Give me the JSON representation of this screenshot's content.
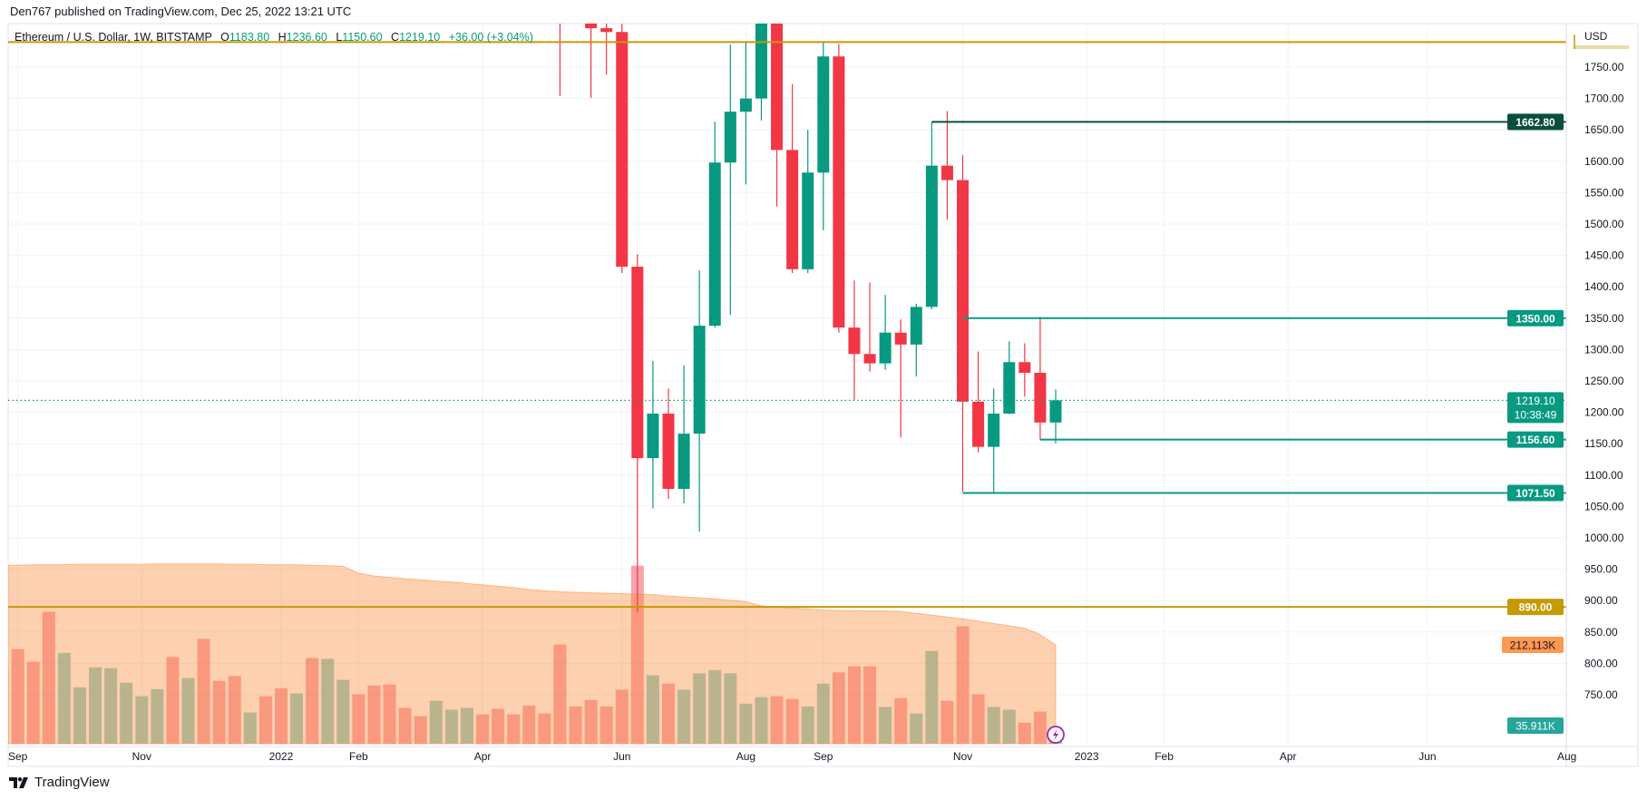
{
  "publisher_line": "Den767 published on TradingView.com, Dec 25, 2022 13:21 UTC",
  "legend": {
    "symbol": "Ethereum / U.S. Dollar, 1W, BITSTAMP",
    "o_key": "O",
    "o_val": "1183.80",
    "h_key": "H",
    "h_val": "1236.60",
    "l_key": "L",
    "l_val": "1150.60",
    "c_key": "C",
    "c_val": "1219.10",
    "change": "+36.00 (+3.04%)"
  },
  "footer": {
    "brand": "TradingView",
    "logo_icon": "tradingview-logo-icon"
  },
  "colors": {
    "up": "#089981",
    "down": "#f23645",
    "grid": "#f0f3fa",
    "level_gold": "#c49a06",
    "level_dark_green": "#0b4d3b",
    "level_green": "#089981",
    "volume_ma": "#fa8a3a",
    "volume_ma_label": "#ff9850",
    "volume_label": "#26a69a"
  },
  "chart_data": {
    "type": "candlestick",
    "title": "Ethereum / U.S. Dollar, 1W, BITSTAMP",
    "currency_label": "USD",
    "interval": "1W",
    "ylim": [
      665,
      1819
    ],
    "grid": true,
    "y_ticks": [
      "1750.00",
      "1700.00",
      "1650.00",
      "1600.00",
      "1550.00",
      "1500.00",
      "1450.00",
      "1400.00",
      "1350.00",
      "1300.00",
      "1250.00",
      "1200.00",
      "1150.00",
      "1100.00",
      "1050.00",
      "1000.00",
      "950.00",
      "900.00",
      "850.00",
      "800.00",
      "750.00"
    ],
    "time_ticks": [
      {
        "label": "Sep",
        "date": "2021-09-06"
      },
      {
        "label": "Nov",
        "date": "2021-11-01"
      },
      {
        "label": "2022",
        "date": "2022-01-03"
      },
      {
        "label": "Feb",
        "date": "2022-02-07"
      },
      {
        "label": "Apr",
        "date": "2022-04-04"
      },
      {
        "label": "Jun",
        "date": "2022-06-06"
      },
      {
        "label": "Aug",
        "date": "2022-08-01"
      },
      {
        "label": "Sep",
        "date": "2022-09-05"
      },
      {
        "label": "Nov",
        "date": "2022-11-07"
      },
      {
        "label": "2023",
        "date": "2023-01-02"
      },
      {
        "label": "Feb",
        "date": "2023-02-06"
      },
      {
        "label": "Apr",
        "date": "2023-04-03"
      },
      {
        "label": "Jun",
        "date": "2023-06-05"
      },
      {
        "label": "Aug",
        "date": "2023-08-07"
      }
    ],
    "candles": [
      {
        "date": "2022-05-09",
        "o": 2518,
        "h": 2525,
        "l": 1704,
        "c": 2056
      },
      {
        "date": "2022-05-23",
        "o": 1976,
        "h": 2017,
        "l": 1701,
        "c": 1812
      },
      {
        "date": "2022-05-30",
        "o": 1812,
        "h": 1960,
        "l": 1738,
        "c": 1806
      },
      {
        "date": "2022-06-06",
        "o": 1806,
        "h": 1850,
        "l": 1422,
        "c": 1432
      },
      {
        "date": "2022-06-13",
        "o": 1432,
        "h": 1452,
        "l": 881,
        "c": 1127
      },
      {
        "date": "2022-06-20",
        "o": 1127,
        "h": 1282,
        "l": 1047,
        "c": 1198
      },
      {
        "date": "2022-06-27",
        "o": 1198,
        "h": 1238,
        "l": 1062,
        "c": 1078
      },
      {
        "date": "2022-07-04",
        "o": 1078,
        "h": 1275,
        "l": 1055,
        "c": 1166
      },
      {
        "date": "2022-07-11",
        "o": 1166,
        "h": 1426,
        "l": 1010,
        "c": 1338
      },
      {
        "date": "2022-07-18",
        "o": 1338,
        "h": 1663,
        "l": 1335,
        "c": 1598
      },
      {
        "date": "2022-07-25",
        "o": 1598,
        "h": 1786,
        "l": 1355,
        "c": 1679
      },
      {
        "date": "2022-08-01",
        "o": 1679,
        "h": 1790,
        "l": 1563,
        "c": 1700
      },
      {
        "date": "2022-08-08",
        "o": 1700,
        "h": 2020,
        "l": 1665,
        "c": 1850
      },
      {
        "date": "2022-08-15",
        "o": 1850,
        "h": 1960,
        "l": 1528,
        "c": 1618
      },
      {
        "date": "2022-08-22",
        "o": 1618,
        "h": 1723,
        "l": 1422,
        "c": 1428
      },
      {
        "date": "2022-08-29",
        "o": 1428,
        "h": 1650,
        "l": 1422,
        "c": 1582
      },
      {
        "date": "2022-09-05",
        "o": 1582,
        "h": 1790,
        "l": 1490,
        "c": 1767
      },
      {
        "date": "2022-09-12",
        "o": 1767,
        "h": 1787,
        "l": 1327,
        "c": 1335
      },
      {
        "date": "2022-09-19",
        "o": 1335,
        "h": 1410,
        "l": 1220,
        "c": 1293
      },
      {
        "date": "2022-09-26",
        "o": 1293,
        "h": 1407,
        "l": 1265,
        "c": 1278
      },
      {
        "date": "2022-10-03",
        "o": 1278,
        "h": 1387,
        "l": 1268,
        "c": 1327
      },
      {
        "date": "2022-10-10",
        "o": 1327,
        "h": 1348,
        "l": 1160,
        "c": 1308
      },
      {
        "date": "2022-10-17",
        "o": 1308,
        "h": 1373,
        "l": 1257,
        "c": 1368
      },
      {
        "date": "2022-10-24",
        "o": 1368,
        "h": 1662.8,
        "l": 1364,
        "c": 1593
      },
      {
        "date": "2022-10-31",
        "o": 1593,
        "h": 1680,
        "l": 1507,
        "c": 1570
      },
      {
        "date": "2022-11-07",
        "o": 1570,
        "h": 1610,
        "l": 1073.5,
        "c": 1217
      },
      {
        "date": "2022-11-14",
        "o": 1217,
        "h": 1297,
        "l": 1136,
        "c": 1145
      },
      {
        "date": "2022-11-21",
        "o": 1145,
        "h": 1238,
        "l": 1071.5,
        "c": 1198
      },
      {
        "date": "2022-11-28",
        "o": 1198,
        "h": 1313,
        "l": 1197,
        "c": 1280
      },
      {
        "date": "2022-12-05",
        "o": 1280,
        "h": 1310,
        "l": 1225,
        "c": 1263
      },
      {
        "date": "2022-12-12",
        "o": 1263,
        "h": 1352,
        "l": 1156.6,
        "c": 1183.8
      },
      {
        "date": "2022-12-19",
        "o": 1183.8,
        "h": 1236.6,
        "l": 1150.6,
        "c": 1219.1
      }
    ],
    "volume": {
      "start_date": "2021-08-30",
      "unit": "K",
      "values": [
        160,
        203,
        176,
        283,
        195,
        121,
        164,
        162,
        131,
        102,
        117,
        186,
        141,
        225,
        135,
        145,
        67,
        102,
        119,
        108,
        184,
        182,
        137,
        106,
        125,
        127,
        77,
        59,
        92,
        73,
        77,
        63,
        75,
        63,
        82,
        65,
        213,
        80,
        94,
        80,
        116,
        382,
        147,
        129,
        116,
        151,
        158,
        151,
        86,
        100,
        102,
        96,
        80,
        129,
        153,
        166,
        166,
        79,
        98,
        65,
        199,
        92,
        252,
        106,
        79,
        73,
        45,
        69,
        35.911
      ],
      "direction": [
        "u",
        "d",
        "d",
        "d",
        "u",
        "u",
        "u",
        "u",
        "u",
        "u",
        "u",
        "d",
        "u",
        "d",
        "d",
        "d",
        "u",
        "d",
        "d",
        "u",
        "d",
        "u",
        "u",
        "d",
        "d",
        "d",
        "d",
        "d",
        "u",
        "u",
        "u",
        "d",
        "d",
        "d",
        "d",
        "d",
        "d",
        "d",
        "d",
        "d",
        "d",
        "d",
        "u",
        "d",
        "u",
        "u",
        "u",
        "u",
        "u",
        "u",
        "d",
        "d",
        "u",
        "u",
        "d",
        "d",
        "d",
        "u",
        "d",
        "u",
        "u",
        "d",
        "d",
        "d",
        "u",
        "u",
        "d",
        "d",
        "u"
      ],
      "ma": [
        383,
        383,
        384,
        384,
        384,
        385,
        385,
        385,
        385,
        385,
        386,
        386,
        386,
        386,
        386,
        385,
        385,
        384,
        384,
        384,
        383,
        382,
        381,
        366,
        360,
        357,
        354,
        352,
        349,
        347,
        344,
        341,
        338,
        335,
        331,
        328,
        326,
        325,
        324,
        323,
        322,
        321,
        320,
        317,
        315,
        313,
        311,
        308,
        305,
        296,
        293,
        291,
        289,
        287,
        286,
        286,
        285,
        285,
        284,
        280,
        276,
        272,
        268,
        263,
        258,
        253,
        248,
        234,
        212.113
      ],
      "ma_label": "212.113K",
      "last_label": "35.911K"
    },
    "levels": [
      {
        "price": 1790,
        "from": "full",
        "color_key": "level_gold",
        "label": ""
      },
      {
        "price": 890,
        "from": "full",
        "color_key": "level_gold",
        "label": "890.00"
      },
      {
        "price": 1662.8,
        "from": "2022-10-24",
        "color_key": "level_dark_green",
        "label": "1662.80"
      },
      {
        "price": 1350,
        "from": "2022-11-07",
        "color_key": "level_green",
        "label": "1350.00"
      },
      {
        "price": 1156.6,
        "from": "2022-12-12",
        "color_key": "level_green",
        "label": "1156.60"
      },
      {
        "price": 1071.5,
        "from": "2022-11-07",
        "color_key": "level_green",
        "label": "1071.50"
      }
    ],
    "last_price": {
      "price": 1219.1,
      "label": "1219.10",
      "countdown": "10:38:49"
    },
    "alert_icon": "lightning-icon"
  }
}
